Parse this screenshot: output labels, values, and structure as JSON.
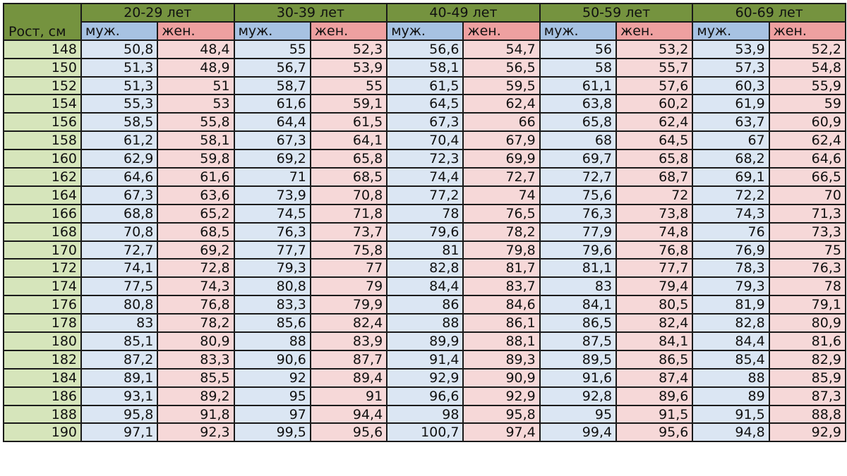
{
  "table": {
    "height_header": "Рост, см",
    "groups": [
      "20-29 лет",
      "30-39 лет",
      "40-49 лет",
      "50-59 лет",
      "60-69 лет"
    ],
    "sex_labels": {
      "male": "муж.",
      "female": "жен."
    },
    "colors": {
      "group_header": "#75933f",
      "height_column": "#d6e5bb",
      "male_header": "#a7c2e2",
      "female_header": "#eea0a0",
      "male_cell": "#dbe6f3",
      "female_cell": "#f6d8d8"
    },
    "rows": [
      {
        "height": "148",
        "values": [
          "50,8",
          "48,4",
          "55",
          "52,3",
          "56,6",
          "54,7",
          "56",
          "53,2",
          "53,9",
          "52,2"
        ]
      },
      {
        "height": "150",
        "values": [
          "51,3",
          "48,9",
          "56,7",
          "53,9",
          "58,1",
          "56,5",
          "58",
          "55,7",
          "57,3",
          "54,8"
        ]
      },
      {
        "height": "152",
        "values": [
          "51,3",
          "51",
          "58,7",
          "55",
          "61,5",
          "59,5",
          "61,1",
          "57,6",
          "60,3",
          "55,9"
        ]
      },
      {
        "height": "154",
        "values": [
          "55,3",
          "53",
          "61,6",
          "59,1",
          "64,5",
          "62,4",
          "63,8",
          "60,2",
          "61,9",
          "59"
        ]
      },
      {
        "height": "156",
        "values": [
          "58,5",
          "55,8",
          "64,4",
          "61,5",
          "67,3",
          "66",
          "65,8",
          "62,4",
          "63,7",
          "60,9"
        ]
      },
      {
        "height": "158",
        "values": [
          "61,2",
          "58,1",
          "67,3",
          "64,1",
          "70,4",
          "67,9",
          "68",
          "64,5",
          "67",
          "62,4"
        ]
      },
      {
        "height": "160",
        "values": [
          "62,9",
          "59,8",
          "69,2",
          "65,8",
          "72,3",
          "69,9",
          "69,7",
          "65,8",
          "68,2",
          "64,6"
        ]
      },
      {
        "height": "162",
        "values": [
          "64,6",
          "61,6",
          "71",
          "68,5",
          "74,4",
          "72,7",
          "72,7",
          "68,7",
          "69,1",
          "66,5"
        ]
      },
      {
        "height": "164",
        "values": [
          "67,3",
          "63,6",
          "73,9",
          "70,8",
          "77,2",
          "74",
          "75,6",
          "72",
          "72,2",
          "70"
        ]
      },
      {
        "height": "166",
        "values": [
          "68,8",
          "65,2",
          "74,5",
          "71,8",
          "78",
          "76,5",
          "76,3",
          "73,8",
          "74,3",
          "71,3"
        ]
      },
      {
        "height": "168",
        "values": [
          "70,8",
          "68,5",
          "76,3",
          "73,7",
          "79,6",
          "78,2",
          "77,9",
          "74,8",
          "76",
          "73,3"
        ]
      },
      {
        "height": "170",
        "values": [
          "72,7",
          "69,2",
          "77,7",
          "75,8",
          "81",
          "79,8",
          "79,6",
          "76,8",
          "76,9",
          "75"
        ]
      },
      {
        "height": "172",
        "values": [
          "74,1",
          "72,8",
          "79,3",
          "77",
          "82,8",
          "81,7",
          "81,1",
          "77,7",
          "78,3",
          "76,3"
        ]
      },
      {
        "height": "174",
        "values": [
          "77,5",
          "74,3",
          "80,8",
          "79",
          "84,4",
          "83,7",
          "83",
          "79,4",
          "79,3",
          "78"
        ]
      },
      {
        "height": "176",
        "values": [
          "80,8",
          "76,8",
          "83,3",
          "79,9",
          "86",
          "84,6",
          "84,1",
          "80,5",
          "81,9",
          "79,1"
        ]
      },
      {
        "height": "178",
        "values": [
          "83",
          "78,2",
          "85,6",
          "82,4",
          "88",
          "86,1",
          "86,5",
          "82,4",
          "82,8",
          "80,9"
        ]
      },
      {
        "height": "180",
        "values": [
          "85,1",
          "80,9",
          "88",
          "83,9",
          "89,9",
          "88,1",
          "87,5",
          "84,1",
          "84,4",
          "81,6"
        ]
      },
      {
        "height": "182",
        "values": [
          "87,2",
          "83,3",
          "90,6",
          "87,7",
          "91,4",
          "89,3",
          "89,5",
          "86,5",
          "85,4",
          "82,9"
        ]
      },
      {
        "height": "184",
        "values": [
          "89,1",
          "85,5",
          "92",
          "89,4",
          "92,9",
          "90,9",
          "91,6",
          "87,4",
          "88",
          "85,9"
        ]
      },
      {
        "height": "186",
        "values": [
          "93,1",
          "89,2",
          "95",
          "91",
          "96,6",
          "92,9",
          "92,8",
          "89,6",
          "89",
          "87,3"
        ]
      },
      {
        "height": "188",
        "values": [
          "95,8",
          "91,8",
          "97",
          "94,4",
          "98",
          "95,8",
          "95",
          "91,5",
          "91,5",
          "88,8"
        ]
      },
      {
        "height": "190",
        "values": [
          "97,1",
          "92,3",
          "99,5",
          "95,6",
          "100,7",
          "97,4",
          "99,4",
          "95,6",
          "94,8",
          "92,9"
        ]
      }
    ]
  }
}
